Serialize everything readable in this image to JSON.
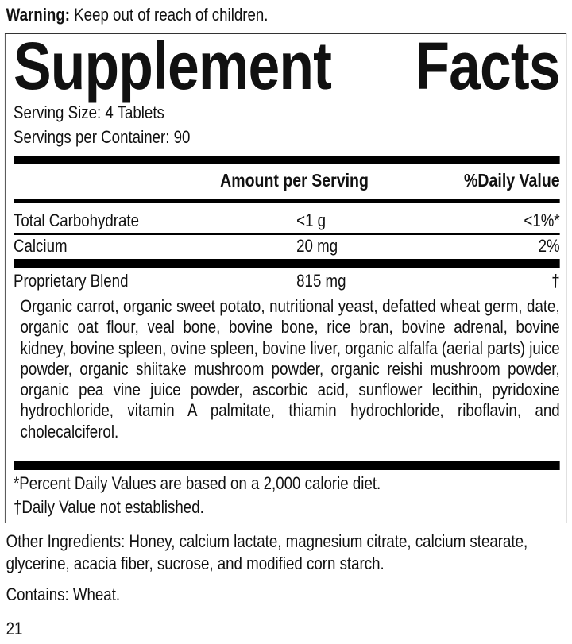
{
  "warning": {
    "label": "Warning:",
    "text": " Keep out of reach of children."
  },
  "facts": {
    "title_word1": "Supplement",
    "title_word2": "Facts",
    "serving_size": "Serving Size: 4 Tablets",
    "servings_per_container": "Servings per Container: 90",
    "headers": {
      "amount": "Amount per Serving",
      "dv": "%Daily Value"
    },
    "rows": [
      {
        "name": "Total Carbohydrate",
        "amount": "<1 g",
        "dv": "<1%*"
      },
      {
        "name": "Calcium",
        "amount": "20 mg",
        "dv": "2%"
      },
      {
        "name": "Proprietary Blend",
        "amount": "815 mg",
        "dv": "†"
      }
    ],
    "blend_ingredients": "Organic carrot, organic sweet potato, nutritional yeast, defatted wheat germ, date, organic oat flour, veal bone, bovine bone, rice bran, bovine adrenal, bovine kidney, bovine spleen, ovine spleen, bovine liver, organic alfalfa (aerial parts) juice powder, organic shiitake mushroom powder, organic reishi mushroom powder, organic pea vine juice powder, ascorbic acid, sunflower lecithin, pyridoxine hydrochloride, vitamin A palmitate, thiamin hydrochloride, riboflavin, and cholecalciferol.",
    "footnote1": "*Percent Daily Values are based on a 2,000 calorie diet.",
    "footnote2": "†Daily Value not established."
  },
  "other_ingredients": "Other Ingredients: Honey, calcium lactate, magnesium citrate, calcium stearate, glycerine, acacia fiber, sucrose, and modified corn starch.",
  "contains": "Contains: Wheat.",
  "page_number": "21"
}
